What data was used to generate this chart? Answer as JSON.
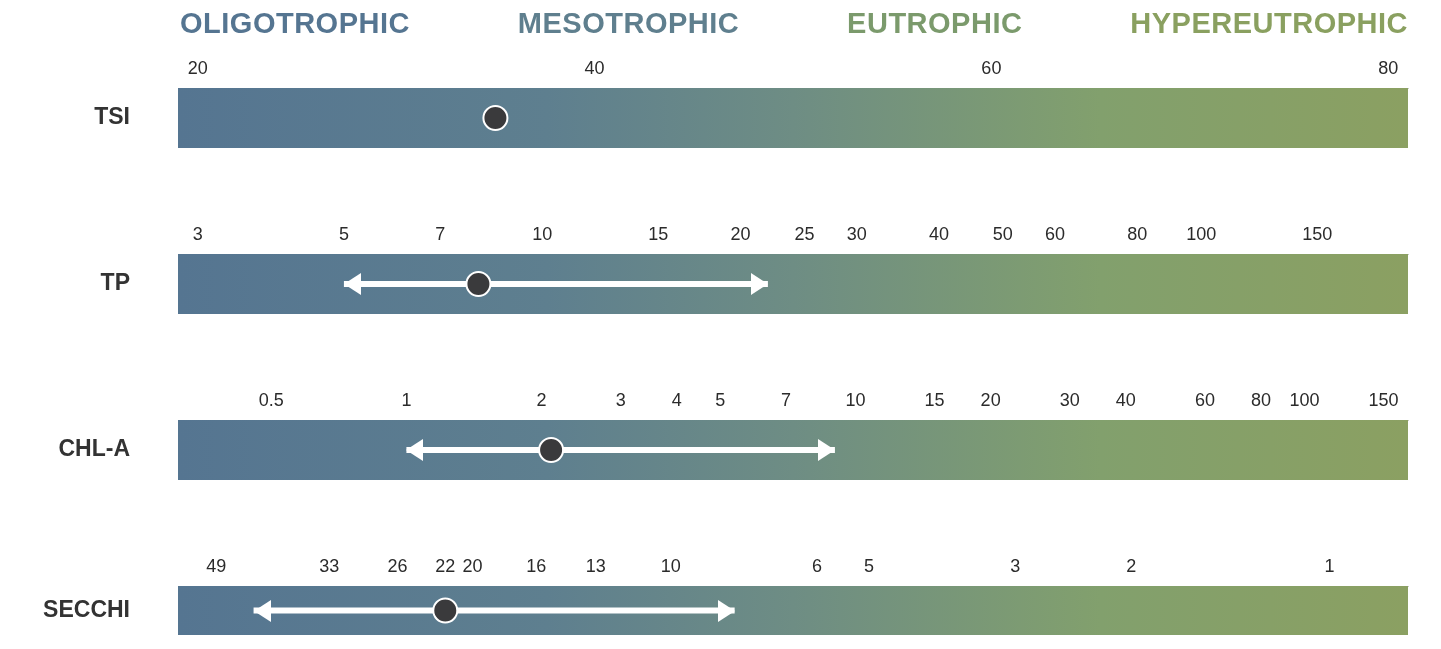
{
  "chart_data": [
    {
      "type": "scatter",
      "orientation": "horizontal",
      "annotations": [
        "OLIGOTROPHIC",
        "MESOTROPHIC",
        "EUTROPHIC",
        "HYPEREUTROPHIC"
      ],
      "categories": [
        "TSI"
      ],
      "values": [
        35
      ],
      "color": "#3a3a3c",
      "marker": "circle",
      "xlim": [
        19,
        81
      ],
      "xticks": [
        20,
        40,
        60,
        80
      ],
      "bands": [
        {
          "axis": "x",
          "from": 19,
          "to": 81
        }
      ]
    },
    {
      "type": "scatter",
      "orientation": "horizontal",
      "categories": [
        "TP"
      ],
      "values": [
        8
      ],
      "errors": [
        [
          5,
          22
        ]
      ],
      "color": "#3a3a3c",
      "marker": "circle",
      "log": "x",
      "xlim": [
        2.8,
        206
      ],
      "xticks": [
        3,
        5,
        7,
        10,
        15,
        20,
        25,
        30,
        40,
        50,
        60,
        80,
        100,
        150
      ],
      "bands": [
        {
          "axis": "x",
          "from": 2.8,
          "to": 206
        }
      ]
    },
    {
      "type": "scatter",
      "orientation": "horizontal",
      "categories": [
        "CHL-A"
      ],
      "values": [
        2.1
      ],
      "errors": [
        [
          1,
          9
        ]
      ],
      "color": "#3a3a3c",
      "marker": "circle",
      "log": "x",
      "xlim": [
        0.31,
        170
      ],
      "xticks": [
        0.5,
        1,
        2,
        3,
        4,
        5,
        7,
        10,
        15,
        20,
        30,
        40,
        60,
        80,
        100,
        150
      ],
      "bands": [
        {
          "axis": "x",
          "from": 0.31,
          "to": 170
        }
      ]
    },
    {
      "type": "scatter",
      "orientation": "horizontal",
      "categories": [
        "SECCHI"
      ],
      "values": [
        22
      ],
      "errors": [
        [
          8,
          43
        ]
      ],
      "color": "#3a3a3c",
      "marker": "circle",
      "log": "x",
      "xlim": [
        56,
        0.76
      ],
      "xticks": [
        49,
        33,
        26,
        22,
        20,
        16,
        13,
        10,
        6,
        5,
        3,
        2,
        1
      ],
      "bands": [
        {
          "axis": "x",
          "from": 56,
          "to": 0.76
        }
      ]
    }
  ]
}
